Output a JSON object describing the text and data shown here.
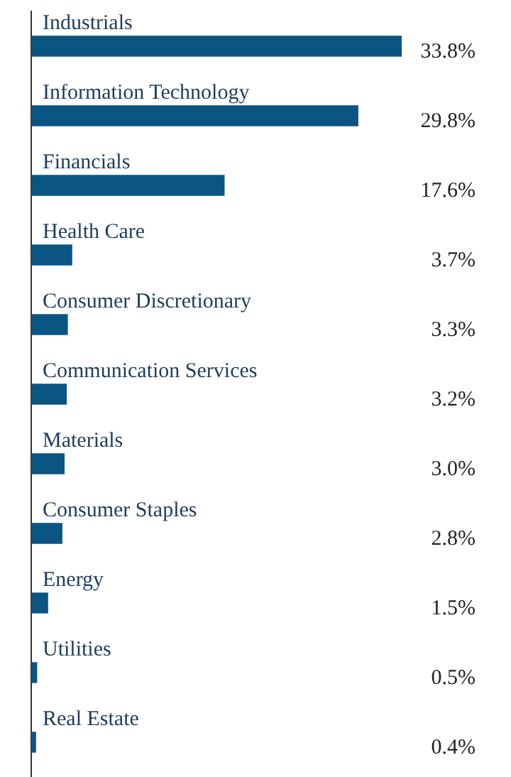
{
  "chart_data": {
    "type": "bar",
    "orientation": "horizontal",
    "color": "#0b5582",
    "categories": [
      "Industrials",
      "Information Technology",
      "Financials",
      "Health Care",
      "Consumer Discretionary",
      "Communication Services",
      "Materials",
      "Consumer Staples",
      "Energy",
      "Utilities",
      "Real Estate"
    ],
    "values": [
      33.8,
      29.8,
      17.6,
      3.7,
      3.3,
      3.2,
      3.0,
      2.8,
      1.5,
      0.5,
      0.4
    ],
    "value_labels": [
      "33.8%",
      "29.8%",
      "17.6%",
      "3.7%",
      "3.3%",
      "3.2%",
      "3.0%",
      "2.8%",
      "1.5%",
      "0.5%",
      "0.4%"
    ]
  }
}
